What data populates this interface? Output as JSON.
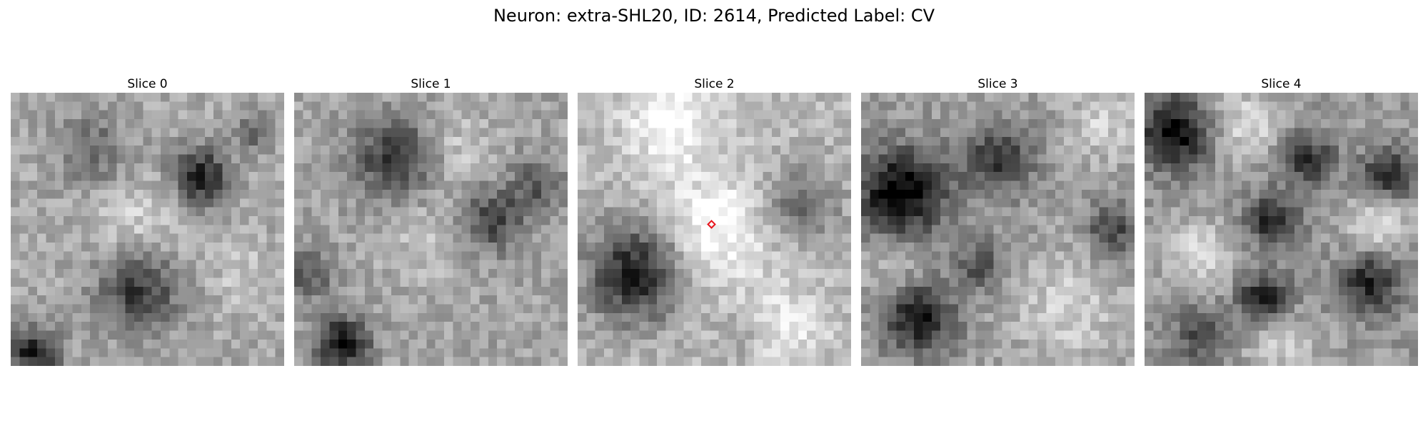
{
  "figure": {
    "title": "Neuron: extra-SHL20, ID: 2614, Predicted Label: CV",
    "marker_color": "#e8141c",
    "colormap": "grayscale",
    "marker_on_slice": 2
  },
  "slices": [
    {
      "label": "Slice 0"
    },
    {
      "label": "Slice 1"
    },
    {
      "label": "Slice 2"
    },
    {
      "label": "Slice 3"
    },
    {
      "label": "Slice 4"
    }
  ]
}
